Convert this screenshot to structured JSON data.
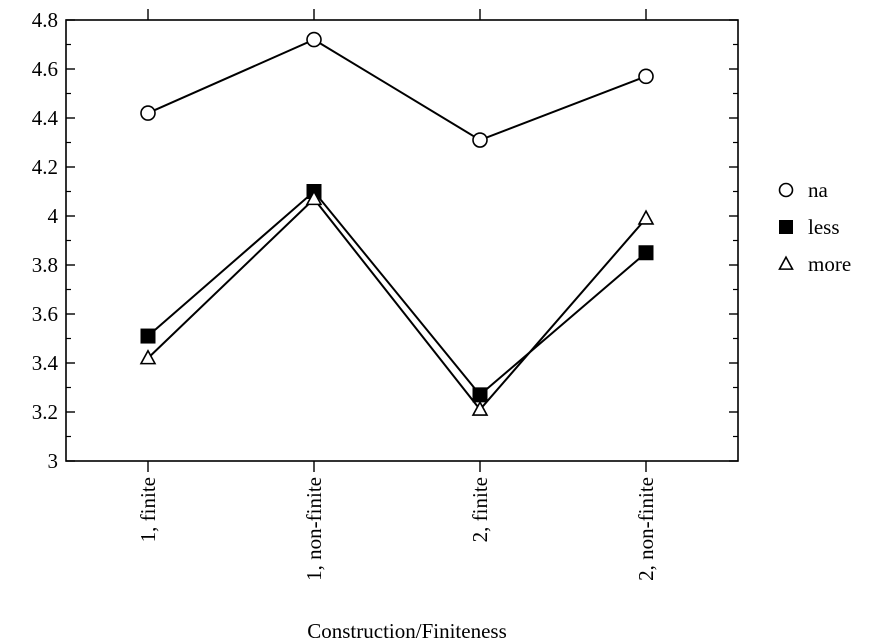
{
  "chart_data": {
    "type": "line",
    "xlabel": "Construction/Finiteness",
    "ylabel": "",
    "title": "",
    "categories": [
      "1, finite",
      "1, non-finite",
      "2, finite",
      "2, non-finite"
    ],
    "ylim": [
      3,
      4.8
    ],
    "yticks": [
      3,
      3.2,
      3.4,
      3.6,
      3.8,
      4,
      4.2,
      4.4,
      4.6,
      4.8
    ],
    "ytick_labels": [
      "3",
      "3.2",
      "3.4",
      "3.6",
      "3.8",
      "4",
      "4.2",
      "4.4",
      "4.6",
      "4.8"
    ],
    "grid": false,
    "legend_position": "right",
    "series": [
      {
        "name": "na",
        "marker": "circle-open",
        "values": [
          4.42,
          4.72,
          4.31,
          4.57
        ]
      },
      {
        "name": "less",
        "marker": "square-filled",
        "values": [
          3.51,
          4.1,
          3.27,
          3.85
        ]
      },
      {
        "name": "more",
        "marker": "triangle-open",
        "values": [
          3.42,
          4.07,
          3.21,
          3.99
        ]
      }
    ]
  }
}
